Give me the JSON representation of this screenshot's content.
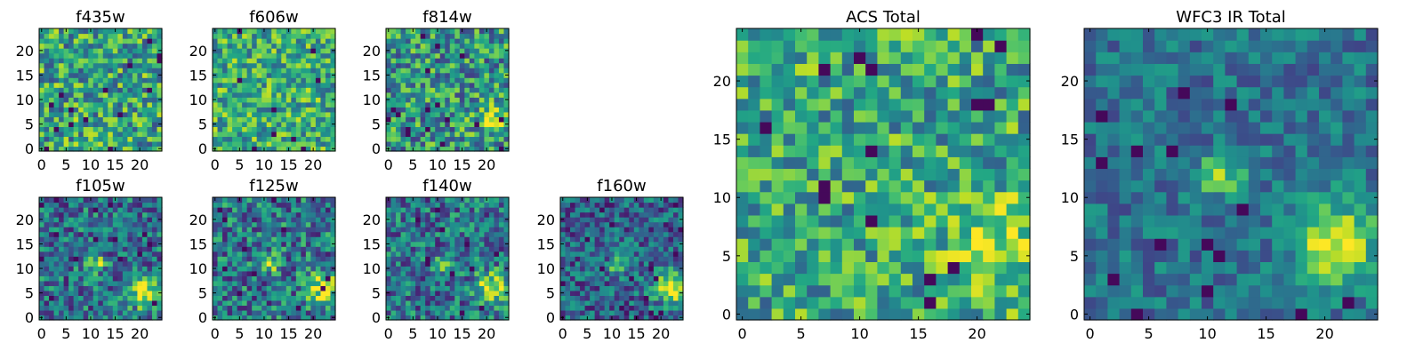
{
  "chart_data": [
    {
      "type": "heatmap",
      "title": "f435w",
      "xticks": [
        0,
        5,
        10,
        15,
        20
      ],
      "yticks": [
        0,
        5,
        10,
        15,
        20
      ],
      "grid": false,
      "xlim": [
        -0.5,
        24.5
      ],
      "ylim": [
        -0.5,
        24.5
      ],
      "features": {
        "base": 0.58,
        "noise": 0.34,
        "blobs": []
      }
    },
    {
      "type": "heatmap",
      "title": "f606w",
      "xticks": [
        0,
        5,
        10,
        15,
        20
      ],
      "yticks": [
        0,
        5,
        10,
        15,
        20
      ],
      "grid": false,
      "xlim": [
        -0.5,
        24.5
      ],
      "ylim": [
        -0.5,
        24.5
      ],
      "features": {
        "base": 0.62,
        "noise": 0.3,
        "blobs": []
      }
    },
    {
      "type": "heatmap",
      "title": "f814w",
      "xticks": [
        0,
        5,
        10,
        15,
        20
      ],
      "yticks": [
        0,
        5,
        10,
        15,
        20
      ],
      "grid": false,
      "xlim": [
        -0.5,
        24.5
      ],
      "ylim": [
        -0.5,
        24.5
      ],
      "features": {
        "base": 0.52,
        "noise": 0.34,
        "blobs": [
          {
            "x": 21,
            "y": 6,
            "amp": 0.35,
            "sigma": 2.2
          },
          {
            "x": 11,
            "y": 11,
            "amp": 0.15,
            "sigma": 1.4
          }
        ]
      }
    },
    {
      "type": "heatmap",
      "title": "f105w",
      "xticks": [
        0,
        5,
        10,
        15,
        20
      ],
      "yticks": [
        0,
        5,
        10,
        15,
        20
      ],
      "grid": false,
      "xlim": [
        -0.5,
        24.5
      ],
      "ylim": [
        -0.5,
        24.5
      ],
      "features": {
        "base": 0.38,
        "noise": 0.3,
        "blobs": [
          {
            "x": 21,
            "y": 5,
            "amp": 0.55,
            "sigma": 2.2
          },
          {
            "x": 11,
            "y": 11,
            "amp": 0.45,
            "sigma": 1.3
          }
        ]
      }
    },
    {
      "type": "heatmap",
      "title": "f125w",
      "xticks": [
        0,
        5,
        10,
        15,
        20
      ],
      "yticks": [
        0,
        5,
        10,
        15,
        20
      ],
      "grid": false,
      "xlim": [
        -0.5,
        24.5
      ],
      "ylim": [
        -0.5,
        24.5
      ],
      "features": {
        "base": 0.4,
        "noise": 0.32,
        "blobs": [
          {
            "x": 22,
            "y": 6,
            "amp": 0.55,
            "sigma": 2.4
          },
          {
            "x": 11,
            "y": 11,
            "amp": 0.45,
            "sigma": 1.3
          }
        ]
      }
    },
    {
      "type": "heatmap",
      "title": "f140w",
      "xticks": [
        0,
        5,
        10,
        15,
        20
      ],
      "yticks": [
        0,
        5,
        10,
        15,
        20
      ],
      "grid": false,
      "xlim": [
        -0.5,
        24.5
      ],
      "ylim": [
        -0.5,
        24.5
      ],
      "features": {
        "base": 0.38,
        "noise": 0.3,
        "blobs": [
          {
            "x": 21,
            "y": 6,
            "amp": 0.55,
            "sigma": 2.3
          },
          {
            "x": 11,
            "y": 11,
            "amp": 0.4,
            "sigma": 1.3
          }
        ]
      }
    },
    {
      "type": "heatmap",
      "title": "f160w",
      "xticks": [
        0,
        5,
        10,
        15,
        20
      ],
      "yticks": [
        0,
        5,
        10,
        15,
        20
      ],
      "grid": false,
      "xlim": [
        -0.5,
        24.5
      ],
      "ylim": [
        -0.5,
        24.5
      ],
      "features": {
        "base": 0.33,
        "noise": 0.28,
        "blobs": [
          {
            "x": 22,
            "y": 6,
            "amp": 0.65,
            "sigma": 2.2
          },
          {
            "x": 11,
            "y": 11,
            "amp": 0.45,
            "sigma": 1.2
          }
        ]
      }
    },
    {
      "type": "heatmap",
      "title": "ACS Total",
      "xticks": [
        0,
        5,
        10,
        15,
        20
      ],
      "yticks": [
        0,
        5,
        10,
        15,
        20
      ],
      "grid": false,
      "xlim": [
        -0.5,
        24.5
      ],
      "ylim": [
        -0.5,
        24.5
      ],
      "features": {
        "base": 0.6,
        "noise": 0.3,
        "blobs": [
          {
            "x": 22,
            "y": 6,
            "amp": 0.22,
            "sigma": 3.0
          }
        ]
      }
    },
    {
      "type": "heatmap",
      "title": "WFC3 IR Total",
      "xticks": [
        0,
        5,
        10,
        15,
        20
      ],
      "yticks": [
        0,
        5,
        10,
        15,
        20
      ],
      "grid": false,
      "xlim": [
        -0.5,
        24.5
      ],
      "ylim": [
        -0.5,
        24.5
      ],
      "features": {
        "base": 0.38,
        "noise": 0.18,
        "blobs": [
          {
            "x": 21,
            "y": 6,
            "amp": 0.6,
            "sigma": 2.4
          },
          {
            "x": 11,
            "y": 12,
            "amp": 0.45,
            "sigma": 1.3
          }
        ]
      }
    }
  ]
}
